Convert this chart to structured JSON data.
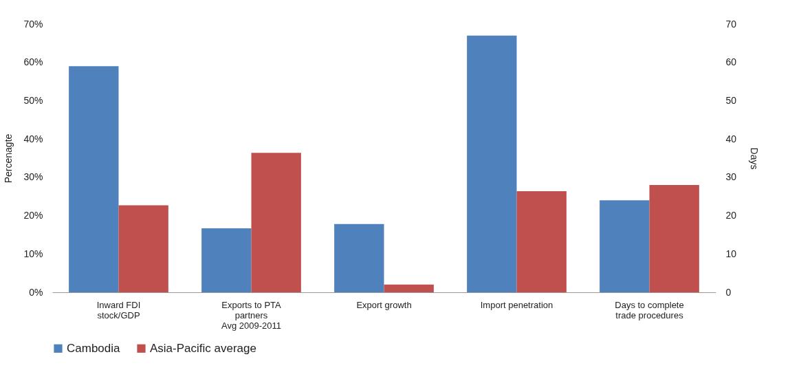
{
  "chart_data": {
    "type": "bar",
    "categories": [
      "Inward FDI\nstock/GDP",
      "Exports to PTA\npartners\nAvg 2009-2011",
      "Export growth",
      "Import penetration",
      "Days to complete\ntrade procedures"
    ],
    "series": [
      {
        "name": "Cambodia",
        "color": "#4f81bd",
        "values": [
          59,
          16.7,
          17.8,
          67,
          null
        ]
      },
      {
        "name": "Asia-Pacific average",
        "color": "#c0504d",
        "values": [
          22.7,
          36.4,
          2,
          26.4,
          null
        ]
      },
      {
        "color": "#4f81bd",
        "axis": "y2",
        "values": [
          null,
          null,
          null,
          null,
          24
        ]
      },
      {
        "color": "#c0504d",
        "axis": "y2",
        "values": [
          null,
          null,
          null,
          null,
          28
        ]
      }
    ],
    "ylabel": "Percenagte",
    "y2label": "Days",
    "ylim": [
      0,
      70
    ],
    "yticks": [
      {
        "value": 0,
        "label": "0%"
      },
      {
        "value": 10,
        "label": "10%"
      },
      {
        "value": 20,
        "label": "20%"
      },
      {
        "value": 30,
        "label": "30%"
      },
      {
        "value": 40,
        "label": "40%"
      },
      {
        "value": 50,
        "label": "50%"
      },
      {
        "value": 60,
        "label": "60%"
      },
      {
        "value": 70,
        "label": "70%"
      }
    ],
    "y2lim": [
      0,
      70
    ],
    "y2ticks": [
      0,
      10,
      20,
      30,
      40,
      50,
      60,
      70
    ],
    "grid": false,
    "legend": "bottom"
  }
}
